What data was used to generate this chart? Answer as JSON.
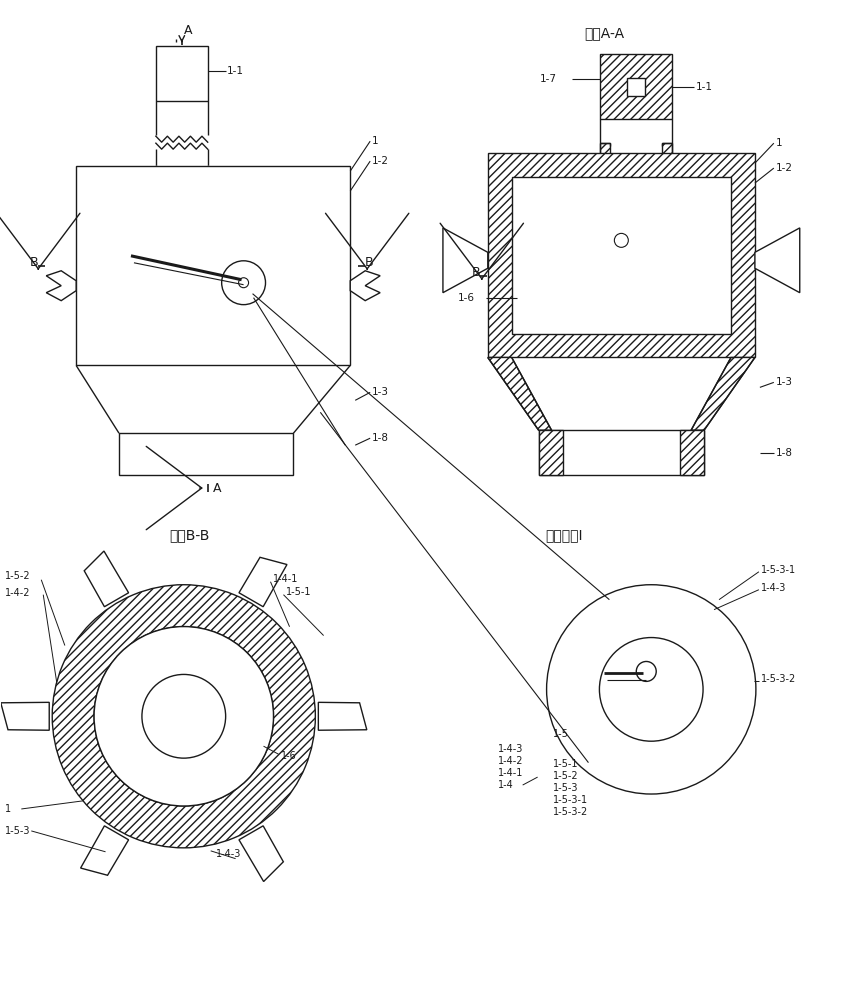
{
  "bg_color": "#ffffff",
  "line_color": "#1a1a1a",
  "title_aa": "剖面A-A",
  "title_bb": "剖面B-B",
  "title_local": "局部视图I"
}
